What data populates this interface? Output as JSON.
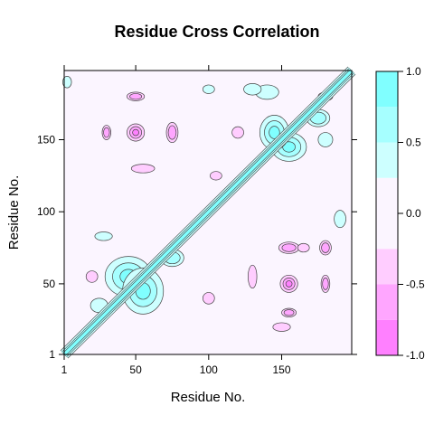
{
  "chart_data": {
    "type": "heatmap",
    "subtype": "contour",
    "title": "Residue Cross Correlation",
    "xlabel": "Residue No.",
    "ylabel": "Residue No.",
    "xlim": [
      1,
      198
    ],
    "ylim": [
      1,
      198
    ],
    "x_ticks": [
      1,
      50,
      100,
      150
    ],
    "y_ticks": [
      1,
      50,
      100,
      150
    ],
    "colorbar": {
      "range": [
        -1.0,
        1.0
      ],
      "ticks": [
        "-1.0",
        "-0.5",
        "0.0",
        "0.5",
        "1.0"
      ],
      "levels": [
        {
          "from": -1.0,
          "to": -0.75,
          "color": "#ff80ff"
        },
        {
          "from": -0.75,
          "to": -0.5,
          "color": "#ffa6ff"
        },
        {
          "from": -0.5,
          "to": -0.25,
          "color": "#ffcdff"
        },
        {
          "from": -0.25,
          "to": 0.25,
          "color": "#fbf5ff"
        },
        {
          "from": 0.25,
          "to": 0.5,
          "color": "#cdffff"
        },
        {
          "from": 0.5,
          "to": 0.75,
          "color": "#a6ffff"
        },
        {
          "from": 0.75,
          "to": 1.0,
          "color": "#80ffff"
        }
      ]
    },
    "features": [
      {
        "kind": "diagonal",
        "value": 1.0
      },
      {
        "kind": "positive",
        "x": 45,
        "y": 55,
        "rx": 16,
        "ry": 14,
        "value": 0.85
      },
      {
        "kind": "positive",
        "x": 55,
        "y": 45,
        "rx": 14,
        "ry": 16,
        "value": 0.85
      },
      {
        "kind": "positive",
        "x": 75,
        "y": 68,
        "rx": 8,
        "ry": 6,
        "value": 0.5
      },
      {
        "kind": "positive",
        "x": 25,
        "y": 35,
        "rx": 6,
        "ry": 5,
        "value": 0.4
      },
      {
        "kind": "positive",
        "x": 155,
        "y": 145,
        "rx": 12,
        "ry": 10,
        "value": 0.85
      },
      {
        "kind": "positive",
        "x": 145,
        "y": 155,
        "rx": 10,
        "ry": 12,
        "value": 0.85
      },
      {
        "kind": "positive",
        "x": 175,
        "y": 165,
        "rx": 8,
        "ry": 6,
        "value": 0.5
      },
      {
        "kind": "positive",
        "x": 140,
        "y": 183,
        "rx": 8,
        "ry": 5,
        "value": 0.45
      },
      {
        "kind": "positive",
        "x": 130,
        "y": 185,
        "rx": 6,
        "ry": 4,
        "value": 0.4
      },
      {
        "kind": "positive",
        "x": 190,
        "y": 95,
        "rx": 4,
        "ry": 6,
        "value": 0.4
      },
      {
        "kind": "positive",
        "x": 28,
        "y": 83,
        "rx": 6,
        "ry": 3,
        "value": 0.35
      },
      {
        "kind": "positive",
        "x": 100,
        "y": 185,
        "rx": 4,
        "ry": 3,
        "value": 0.35
      },
      {
        "kind": "positive",
        "x": 3,
        "y": 190,
        "rx": 3,
        "ry": 4,
        "value": 0.35
      },
      {
        "kind": "positive",
        "x": 180,
        "y": 150,
        "rx": 5,
        "ry": 5,
        "value": 0.4
      },
      {
        "kind": "negative",
        "x": 50,
        "y": 155,
        "rx": 6,
        "ry": 6,
        "value": -0.9
      },
      {
        "kind": "negative",
        "x": 155,
        "y": 50,
        "rx": 6,
        "ry": 6,
        "value": -0.9
      },
      {
        "kind": "negative",
        "x": 30,
        "y": 155,
        "rx": 3,
        "ry": 5,
        "value": -0.6
      },
      {
        "kind": "negative",
        "x": 75,
        "y": 155,
        "rx": 4,
        "ry": 7,
        "value": -0.6
      },
      {
        "kind": "negative",
        "x": 155,
        "y": 30,
        "rx": 5,
        "ry": 3,
        "value": -0.6
      },
      {
        "kind": "negative",
        "x": 155,
        "y": 75,
        "rx": 7,
        "ry": 4,
        "value": -0.6
      },
      {
        "kind": "negative",
        "x": 50,
        "y": 180,
        "rx": 6,
        "ry": 3,
        "value": -0.5
      },
      {
        "kind": "negative",
        "x": 180,
        "y": 50,
        "rx": 3,
        "ry": 6,
        "value": -0.5
      },
      {
        "kind": "negative",
        "x": 180,
        "y": 75,
        "rx": 4,
        "ry": 5,
        "value": -0.5
      },
      {
        "kind": "negative",
        "x": 55,
        "y": 130,
        "rx": 8,
        "ry": 3,
        "value": -0.4
      },
      {
        "kind": "negative",
        "x": 130,
        "y": 55,
        "rx": 3,
        "ry": 8,
        "value": -0.4
      },
      {
        "kind": "negative",
        "x": 20,
        "y": 55,
        "rx": 4,
        "ry": 4,
        "value": -0.4
      },
      {
        "kind": "negative",
        "x": 100,
        "y": 40,
        "rx": 4,
        "ry": 4,
        "value": -0.4
      },
      {
        "kind": "negative",
        "x": 165,
        "y": 75,
        "rx": 4,
        "ry": 3,
        "value": -0.4
      },
      {
        "kind": "negative",
        "x": 150,
        "y": 20,
        "rx": 6,
        "ry": 3,
        "value": -0.4
      },
      {
        "kind": "negative",
        "x": 180,
        "y": 180,
        "rx": 5,
        "ry": 3,
        "value": -0.4
      },
      {
        "kind": "negative",
        "x": 120,
        "y": 155,
        "rx": 4,
        "ry": 4,
        "value": -0.4
      },
      {
        "kind": "negative",
        "x": 105,
        "y": 125,
        "rx": 4,
        "ry": 3,
        "value": -0.35
      }
    ]
  }
}
